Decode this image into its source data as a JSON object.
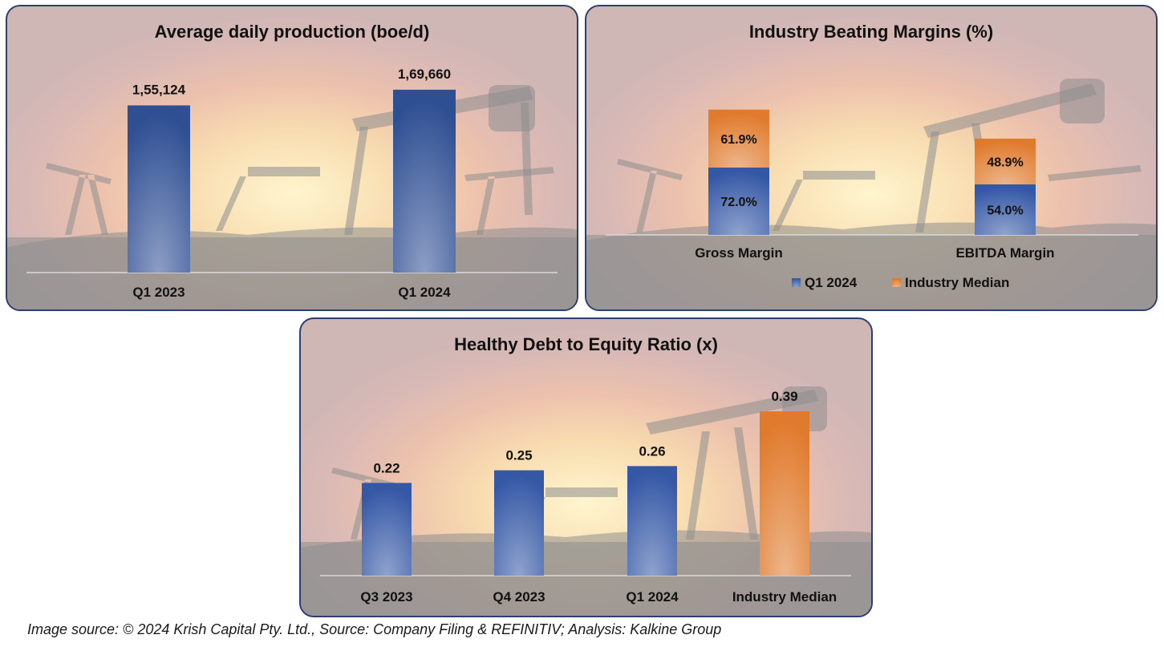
{
  "chart_data": [
    {
      "type": "bar",
      "title": "Average daily production (boe/d)",
      "categories": [
        "Q1 2023",
        "Q1 2024"
      ],
      "values": [
        155124,
        169660
      ],
      "labels": [
        "1,55,124",
        "1,69,660"
      ],
      "ylim": [
        0,
        180000
      ],
      "grid": false,
      "colors": [
        "#2f4f93"
      ]
    },
    {
      "type": "bar",
      "stacked": true,
      "title": "Industry Beating Margins (%)",
      "categories": [
        "Gross Margin",
        "EBITDA Margin"
      ],
      "series": [
        {
          "name": "Q1 2024",
          "values": [
            72.0,
            54.0
          ],
          "labels": [
            "72.0%",
            "54.0%"
          ],
          "color": "#3558a6"
        },
        {
          "name": "Industry Median",
          "values": [
            61.9,
            48.9
          ],
          "labels": [
            "61.9%",
            "48.9%"
          ],
          "color": "#e07a2c"
        }
      ],
      "legend": "bottom",
      "grid": false
    },
    {
      "type": "bar",
      "title": "Healthy Debt to Equity Ratio (x)",
      "categories": [
        "Q3 2023",
        "Q4 2023",
        "Q1 2024",
        "Industry Median"
      ],
      "values": [
        0.22,
        0.25,
        0.26,
        0.39
      ],
      "labels": [
        "0.22",
        "0.25",
        "0.26",
        "0.39"
      ],
      "colors": [
        "#3558a6",
        "#3558a6",
        "#3558a6",
        "#e07a2c"
      ],
      "ylim": [
        0,
        0.42
      ],
      "grid": false
    }
  ],
  "footer": "Image source: © 2024 Krish Capital Pty. Ltd., Source: Company Filing & REFINITIV; Analysis: Kalkine Group"
}
